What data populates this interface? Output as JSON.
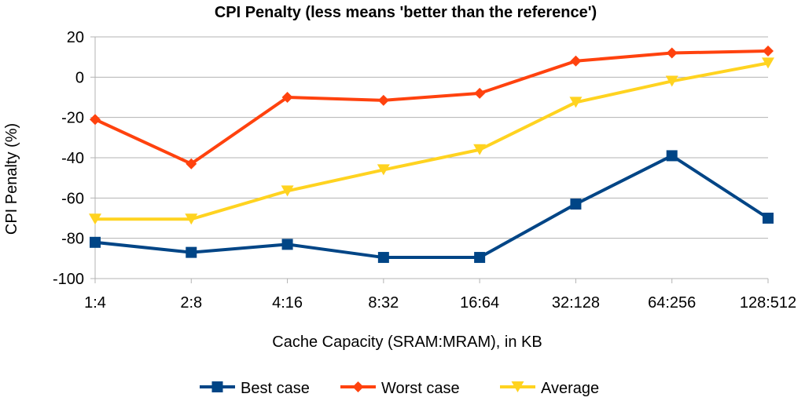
{
  "chart_data": {
    "type": "line",
    "title": "CPI Penalty (less means 'better than the reference')",
    "xlabel": "Cache Capacity (SRAM:MRAM), in KB",
    "ylabel": "CPI Penalty (%)",
    "ylim": [
      -100,
      20
    ],
    "yticks": [
      20,
      0,
      -20,
      -40,
      -60,
      -80,
      -100
    ],
    "grid": true,
    "legend_position": "bottom",
    "categories": [
      "1:4",
      "2:8",
      "4:16",
      "8:32",
      "16:64",
      "32:128",
      "64:256",
      "128:512"
    ],
    "series": [
      {
        "name": "Best case",
        "color": "#004586",
        "marker": "square",
        "values": [
          -82,
          -87,
          -83,
          -89.5,
          -89.5,
          -63,
          -39,
          -70
        ]
      },
      {
        "name": "Worst case",
        "color": "#ff420e",
        "marker": "diamond",
        "values": [
          -21,
          -43,
          -10,
          -11.5,
          -8,
          8,
          12,
          13
        ]
      },
      {
        "name": "Average",
        "color": "#ffd320",
        "marker": "triangle-down",
        "values": [
          -70.5,
          -70.5,
          -56.5,
          -46,
          -36,
          -12.5,
          -2,
          7
        ]
      }
    ]
  }
}
